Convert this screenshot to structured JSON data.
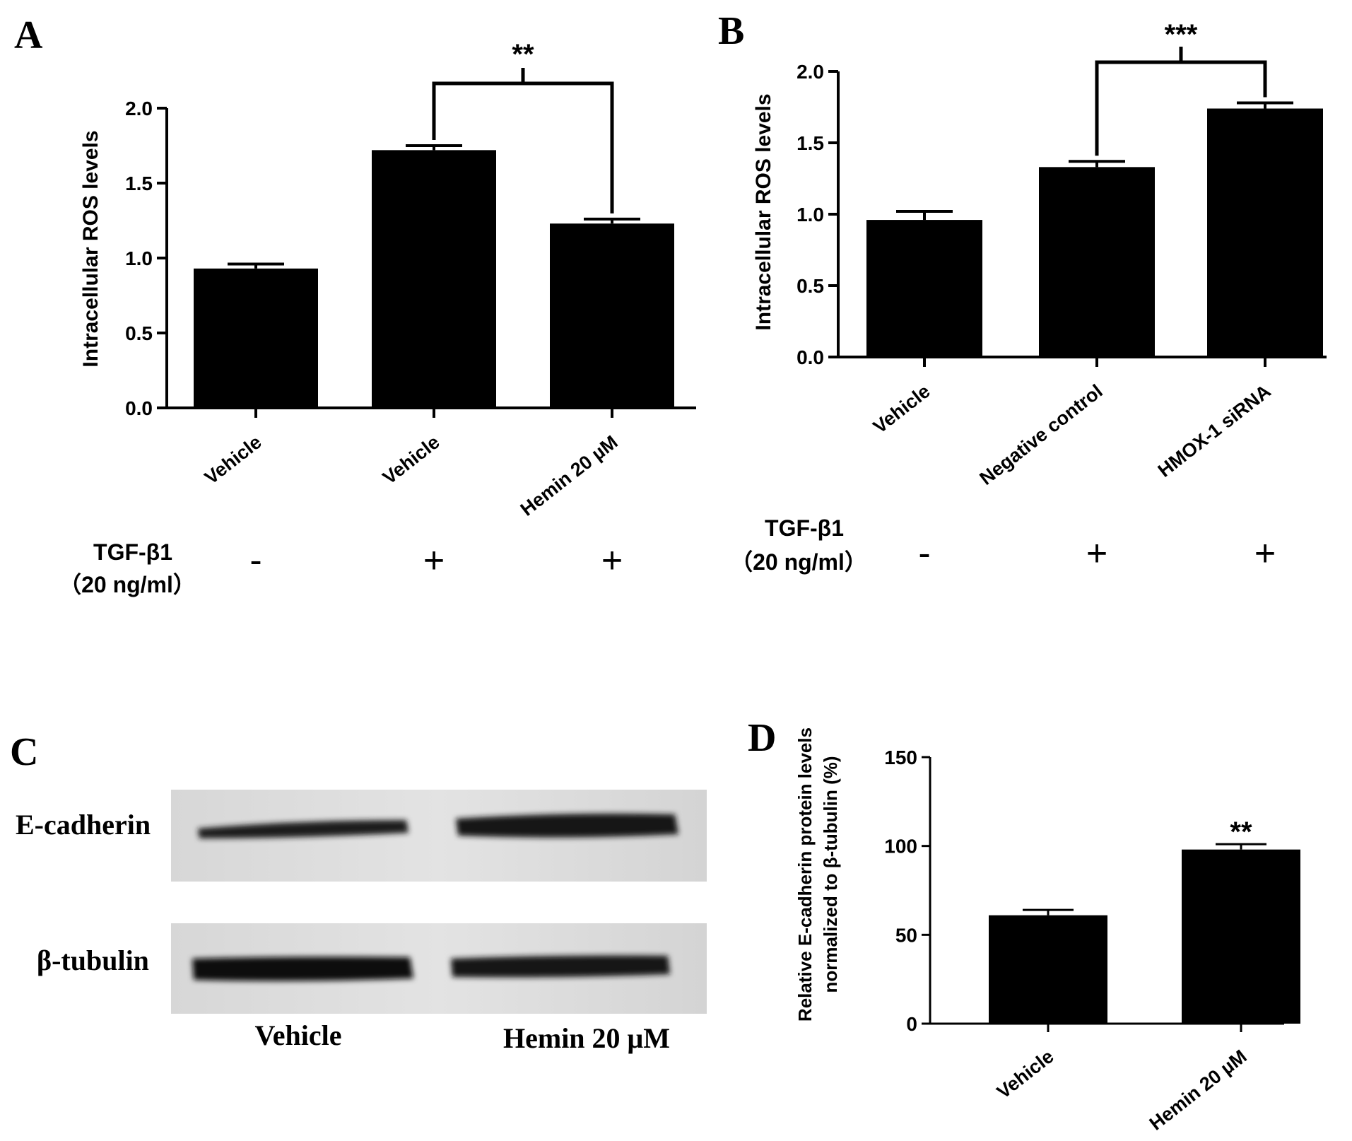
{
  "chart_data": [
    {
      "type": "bar",
      "panel_label": "A",
      "ylabel": "Intracellular ROS levels",
      "ylim": [
        0,
        2.0
      ],
      "yticks": [
        "0.0",
        "0.5",
        "1.0",
        "1.5",
        "2.0"
      ],
      "categories": [
        "Vehicle",
        "Vehicle",
        "Hemin 20 µM"
      ],
      "values": [
        0.93,
        1.72,
        1.23
      ],
      "errors": [
        0.03,
        0.03,
        0.03
      ],
      "treatment_label": [
        "TGF-β1",
        "（20 ng/ml）"
      ],
      "treatment_signs": [
        "-",
        "+",
        "+"
      ],
      "significance": [
        {
          "from": 1,
          "to": 2,
          "label": "**"
        }
      ]
    },
    {
      "type": "bar",
      "panel_label": "B",
      "ylabel": "Intracellular ROS levels",
      "ylim": [
        0,
        2.0
      ],
      "yticks": [
        "0.0",
        "0.5",
        "1.0",
        "1.5",
        "2.0"
      ],
      "categories": [
        "Vehicle",
        "Negative control",
        "HMOX-1 siRNA"
      ],
      "values": [
        0.96,
        1.33,
        1.74
      ],
      "errors": [
        0.06,
        0.04,
        0.04
      ],
      "treatment_label": [
        "TGF-β1",
        "（20 ng/ml）"
      ],
      "treatment_signs": [
        "-",
        "+",
        "+"
      ],
      "significance": [
        {
          "from": 1,
          "to": 2,
          "label": "***"
        }
      ]
    },
    {
      "type": "bar",
      "panel_label": "D",
      "ylabel": [
        "Relative E-cadherin protein levels",
        "normalized to β-tubulin (%)"
      ],
      "ylim": [
        0,
        150
      ],
      "yticks": [
        "0",
        "50",
        "100",
        "150"
      ],
      "categories": [
        "Vehicle",
        "Hemin 20 µM"
      ],
      "values": [
        61,
        98
      ],
      "errors": [
        3,
        3
      ],
      "annotations": [
        {
          "bar": 1,
          "label": "**"
        }
      ]
    }
  ],
  "western_blot": {
    "panel_label": "C",
    "rows": [
      "E-cadherin",
      "β-tubulin"
    ],
    "lanes": [
      "Vehicle",
      "Hemin 20 μM"
    ]
  }
}
